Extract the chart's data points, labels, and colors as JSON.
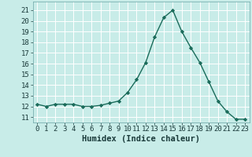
{
  "x": [
    0,
    1,
    2,
    3,
    4,
    5,
    6,
    7,
    8,
    9,
    10,
    11,
    12,
    13,
    14,
    15,
    16,
    17,
    18,
    19,
    20,
    21,
    22,
    23
  ],
  "y": [
    12.2,
    12.0,
    12.2,
    12.2,
    12.2,
    12.0,
    12.0,
    12.1,
    12.3,
    12.5,
    13.3,
    14.5,
    16.1,
    18.5,
    20.3,
    21.0,
    19.0,
    17.5,
    16.1,
    14.3,
    12.5,
    11.5,
    10.8,
    10.8
  ],
  "line_color": "#1a6b5a",
  "marker": "D",
  "marker_size": 2.2,
  "bg_color": "#c8ece8",
  "grid_color": "#ffffff",
  "xlabel": "Humidex (Indice chaleur)",
  "yticks": [
    11,
    12,
    13,
    14,
    15,
    16,
    17,
    18,
    19,
    20,
    21
  ],
  "ylim": [
    10.5,
    21.8
  ],
  "xlim": [
    -0.5,
    23.5
  ],
  "xlabel_fontsize": 7.5,
  "tick_fontsize": 6.5,
  "line_width": 1.0
}
